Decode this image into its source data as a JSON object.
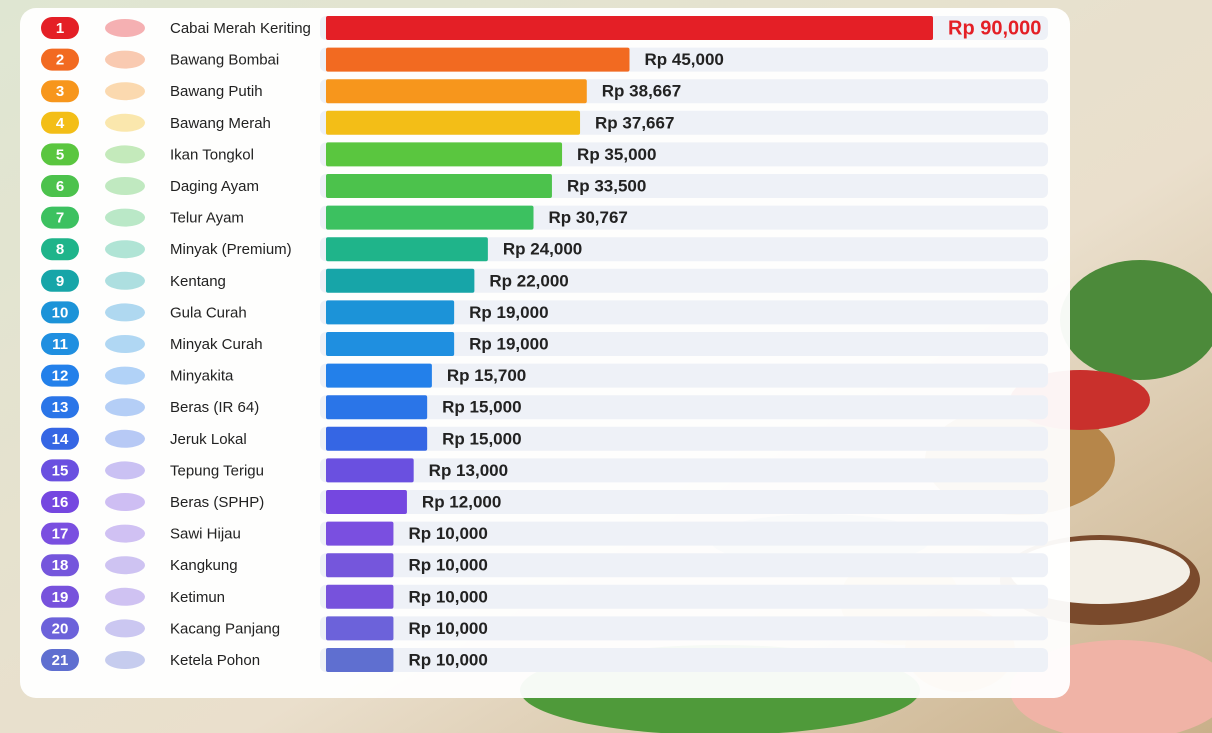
{
  "chart_data": {
    "type": "bar",
    "orientation": "horizontal",
    "ranks": [
      1,
      2,
      3,
      4,
      5,
      6,
      7,
      8,
      9,
      10,
      11,
      12,
      13,
      14,
      15,
      16,
      17,
      18,
      19,
      20,
      21
    ],
    "categories": [
      "Cabai Merah Keriting",
      "Bawang Bombai",
      "Bawang Putih",
      "Bawang Merah",
      "Ikan Tongkol",
      "Daging Ayam",
      "Telur Ayam",
      "Minyak (Premium)",
      "Kentang",
      "Gula Curah",
      "Minyak Curah",
      "Minyakita",
      "Beras (IR 64)",
      "Jeruk Lokal",
      "Tepung Terigu",
      "Beras (SPHP)",
      "Sawi Hijau",
      "Kangkung",
      "Ketimun",
      "Kacang Panjang",
      "Ketela Pohon"
    ],
    "values": [
      90000,
      45000,
      38667,
      37667,
      35000,
      33500,
      30767,
      24000,
      22000,
      19000,
      19000,
      15700,
      15000,
      15000,
      13000,
      12000,
      10000,
      10000,
      10000,
      10000,
      10000
    ],
    "value_labels": [
      "Rp 90,000",
      "Rp 45,000",
      "Rp 38,667",
      "Rp 37,667",
      "Rp 35,000",
      "Rp 33,500",
      "Rp 30,767",
      "Rp 24,000",
      "Rp 22,000",
      "Rp 19,000",
      "Rp 19,000",
      "Rp 15,700",
      "Rp 15,000",
      "Rp 15,000",
      "Rp 13,000",
      "Rp 12,000",
      "Rp 10,000",
      "Rp 10,000",
      "Rp 10,000",
      "Rp 10,000",
      "Rp 10,000"
    ],
    "colors": [
      "#e41f26",
      "#f26a21",
      "#f7961c",
      "#f3be17",
      "#5ac63f",
      "#4cc24c",
      "#3cc160",
      "#1fb48a",
      "#17a5a8",
      "#1c93d8",
      "#1f8fe0",
      "#2380ea",
      "#2a75e8",
      "#3566e4",
      "#6a50e0",
      "#7547e0",
      "#7a4fe0",
      "#7556dc",
      "#7752dc",
      "#6c62da",
      "#5f6fd0"
    ]
  }
}
